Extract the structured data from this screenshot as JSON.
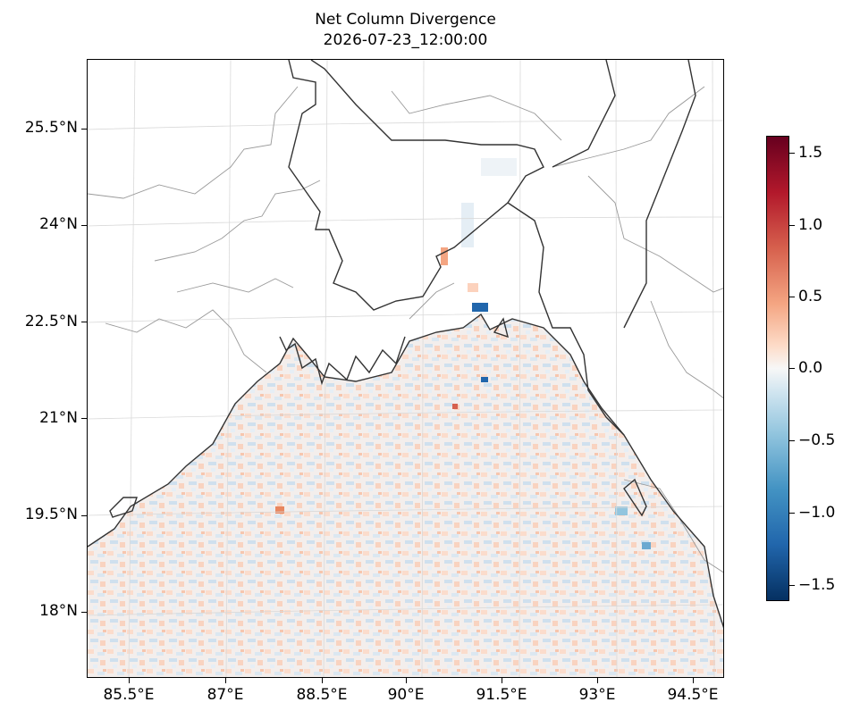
{
  "title": {
    "line1": "Net Column Divergence",
    "line2": "2026-07-23_12:00:00"
  },
  "map": {
    "extent_lon": [
      84.9,
      95.3
    ],
    "extent_lat": [
      17.0,
      26.6
    ],
    "projection": "lambert-conformal",
    "gridlines": true,
    "coastline_color": "#333333",
    "border_color": "#999999",
    "lat_ticks": [
      "25.5°N",
      "24°N",
      "22.5°N",
      "21°N",
      "19.5°N",
      "18°N"
    ],
    "lon_ticks": [
      "85.5°E",
      "87°E",
      "88.5°E",
      "90°E",
      "91.5°E",
      "93°E",
      "94.5°E"
    ]
  },
  "colorbar": {
    "colormap": "RdBu_r",
    "range": [
      -1.6,
      1.6
    ],
    "ticks": [
      "1.5",
      "1.0",
      "0.5",
      "0.0",
      "−0.5",
      "−1.0",
      "−1.5"
    ]
  }
}
